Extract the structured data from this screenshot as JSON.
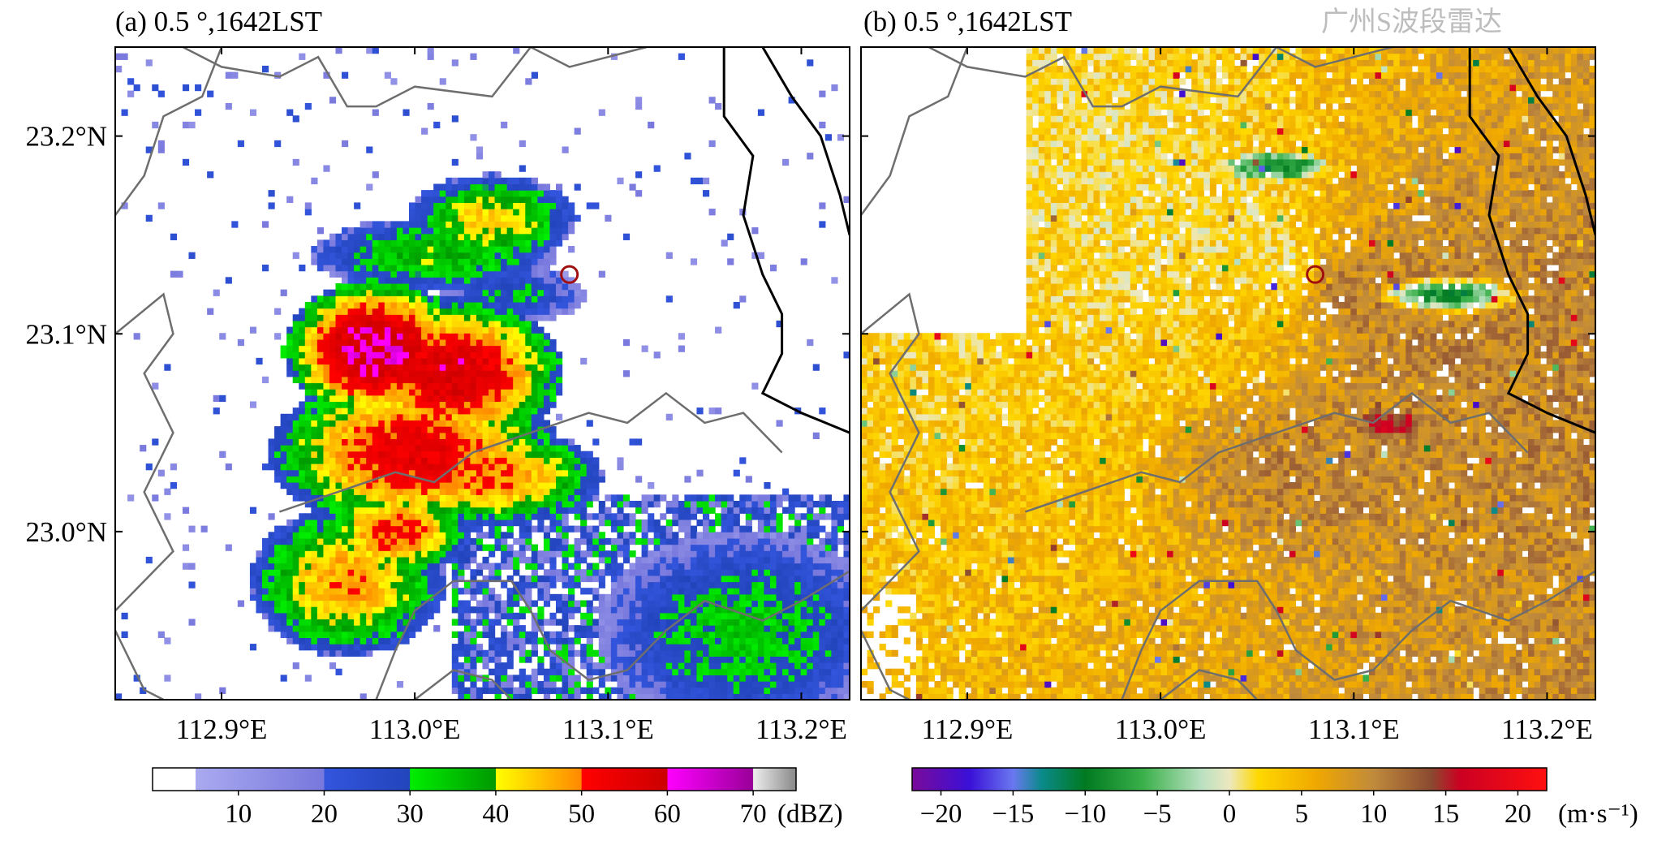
{
  "figure": {
    "watermark": "广州S波段雷达",
    "marker": {
      "lon": 113.08,
      "lat": 23.13,
      "color": "#a01010"
    }
  },
  "chart_data": [
    {
      "type": "heatmap",
      "title": "(a) 0.5 °,1642LST",
      "quantity": "reflectivity",
      "unit": "(dBZ)",
      "xlabel": "",
      "ylabel": "",
      "xlim": [
        112.845,
        113.225
      ],
      "ylim": [
        22.915,
        23.245
      ],
      "xticks": [
        112.9,
        113.0,
        113.1,
        113.2
      ],
      "xtick_labels": [
        "112.9°E",
        "113.0°E",
        "113.1°E",
        "113.2°E"
      ],
      "yticks": [
        23.0,
        23.1,
        23.2
      ],
      "ytick_labels": [
        "23.0°N",
        "23.1°N",
        "23.2°N"
      ],
      "grid": false,
      "colorbar": {
        "min": 0,
        "max": 75,
        "ticks": [
          10,
          20,
          30,
          40,
          50,
          60,
          70
        ],
        "tick_labels": [
          "10",
          "20",
          "30",
          "40",
          "50",
          "60",
          "70"
        ],
        "stops": [
          [
            0,
            "#ffffff"
          ],
          [
            5,
            "#ffffff"
          ],
          [
            5.01,
            "#aaaaf0"
          ],
          [
            20,
            "#7777dd"
          ],
          [
            20.01,
            "#3355dd"
          ],
          [
            30,
            "#2244bb"
          ],
          [
            30.01,
            "#00ee00"
          ],
          [
            40,
            "#009900"
          ],
          [
            40.01,
            "#ffff00"
          ],
          [
            50,
            "#ff8800"
          ],
          [
            50.01,
            "#ff0000"
          ],
          [
            60,
            "#cc0000"
          ],
          [
            60.01,
            "#ff00ff"
          ],
          [
            70,
            "#990099"
          ],
          [
            70.01,
            "#eeeeee"
          ],
          [
            75,
            "#888888"
          ]
        ]
      },
      "cells": [
        {
          "lon": 112.98,
          "lat": 23.092,
          "rx": 0.038,
          "ry": 0.028,
          "v": 62
        },
        {
          "lon": 113.02,
          "lat": 23.08,
          "rx": 0.045,
          "ry": 0.03,
          "v": 58
        },
        {
          "lon": 113.0,
          "lat": 23.04,
          "rx": 0.06,
          "ry": 0.032,
          "v": 55
        },
        {
          "lon": 113.04,
          "lat": 23.028,
          "rx": 0.045,
          "ry": 0.02,
          "v": 50
        },
        {
          "lon": 112.99,
          "lat": 23.0,
          "rx": 0.03,
          "ry": 0.018,
          "v": 52
        },
        {
          "lon": 112.965,
          "lat": 22.975,
          "rx": 0.04,
          "ry": 0.03,
          "v": 48
        },
        {
          "lon": 113.04,
          "lat": 23.158,
          "rx": 0.035,
          "ry": 0.018,
          "v": 44
        },
        {
          "lon": 113.01,
          "lat": 23.14,
          "rx": 0.05,
          "ry": 0.015,
          "v": 38
        },
        {
          "lon": 113.05,
          "lat": 23.12,
          "rx": 0.03,
          "ry": 0.012,
          "v": 30
        },
        {
          "lon": 113.17,
          "lat": 22.95,
          "rx": 0.06,
          "ry": 0.04,
          "v": 34
        }
      ]
    },
    {
      "type": "heatmap",
      "title": "(b) 0.5 °,1642LST",
      "quantity": "radial velocity",
      "unit": "(m·s⁻¹)",
      "xlabel": "",
      "ylabel": "",
      "xlim": [
        112.845,
        113.225
      ],
      "ylim": [
        22.915,
        23.245
      ],
      "xticks": [
        112.9,
        113.0,
        113.1,
        113.2
      ],
      "xtick_labels": [
        "112.9°E",
        "113.0°E",
        "113.1°E",
        "113.2°E"
      ],
      "yticks": [
        23.0,
        23.1,
        23.2
      ],
      "ytick_labels": [
        "23.0°N",
        "23.1°N",
        "23.2°N"
      ],
      "grid": false,
      "colorbar": {
        "min": -22,
        "max": 22,
        "ticks": [
          -20,
          -15,
          -10,
          -5,
          0,
          5,
          10,
          15,
          20
        ],
        "tick_labels": [
          "−20",
          "−15",
          "−10",
          "−5",
          "0",
          "5",
          "10",
          "15",
          "20"
        ],
        "stops": [
          [
            -22,
            "#7a0a9a"
          ],
          [
            -18,
            "#3a10d8"
          ],
          [
            -15,
            "#6a78f0"
          ],
          [
            -13,
            "#0a8a8a"
          ],
          [
            -10,
            "#007a20"
          ],
          [
            -6,
            "#3ab04a"
          ],
          [
            -2,
            "#b8e0c0"
          ],
          [
            0,
            "#ece8c0"
          ],
          [
            2,
            "#ffd800"
          ],
          [
            6,
            "#f0a800"
          ],
          [
            10,
            "#c08a3c"
          ],
          [
            14,
            "#8a4a30"
          ],
          [
            16,
            "#cc0022"
          ],
          [
            22,
            "#ff1010"
          ]
        ]
      },
      "cells": [
        {
          "lon": 113.07,
          "lat": 23.03,
          "rx": 0.08,
          "ry": 0.05,
          "v": 10
        },
        {
          "lon": 113.15,
          "lat": 23.12,
          "rx": 0.04,
          "ry": 0.01,
          "v": -9
        },
        {
          "lon": 113.06,
          "lat": 23.185,
          "rx": 0.03,
          "ry": 0.008,
          "v": -10
        },
        {
          "lon": 113.12,
          "lat": 23.055,
          "rx": 0.02,
          "ry": 0.008,
          "v": 16
        }
      ]
    }
  ]
}
